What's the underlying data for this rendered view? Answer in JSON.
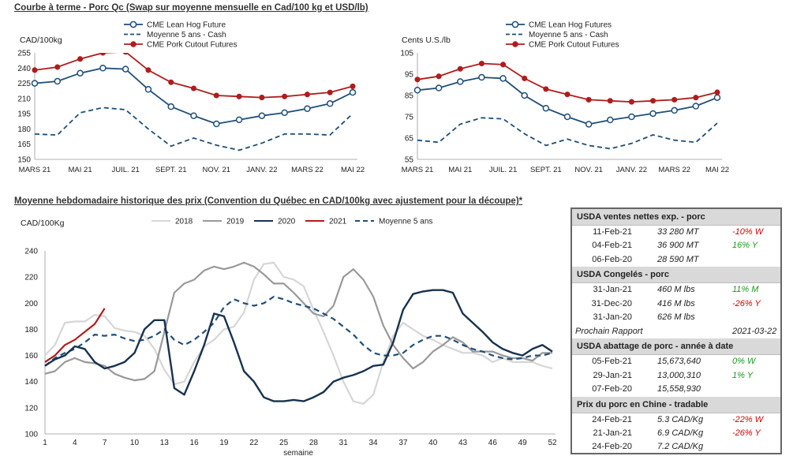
{
  "top_title": "Courbe à terme - Porc Qc (Swap sur moyenne mensuelle en Cad/100 kg et USD/lb)",
  "bottom_title": "Moyenne hebdomadaire historique des prix (Convention du Québec en CAD/100kg avec ajustement pour la découpe)*",
  "colors": {
    "lean": "#1f4e79",
    "cash": "#1f4e79",
    "cutout": "#b01c1c",
    "y2018": "#d6d6d6",
    "y2019": "#999999",
    "y2020": "#17324f",
    "y2021": "#b01c1c",
    "avg": "#1f4e79"
  },
  "chart_data": [
    {
      "type": "line",
      "ylabel": "CAD/100kg",
      "ylim": [
        150,
        255
      ],
      "yticks": [
        "150",
        "165",
        "180",
        "195",
        "210",
        "225",
        "240",
        "255"
      ],
      "categories": [
        "MARS 21",
        "AVR 21",
        "MAI 21",
        "JUIN 21",
        "JUIL. 21",
        "AOÛT 21",
        "SEPT. 21",
        "OCT. 21",
        "NOV. 21",
        "DÉC. 21",
        "JANV. 22",
        "FÉVR. 22",
        "MARS 22",
        "AVR. 22",
        "MAI 22"
      ],
      "xtick_labels": [
        "MARS 21",
        "MAI 21",
        "JUIL. 21",
        "SEPT. 21",
        "NOV. 21",
        "JANV. 22",
        "MARS 22",
        "MAI 22"
      ],
      "series": [
        {
          "name": "CME Lean Hog Future",
          "values": [
            225,
            227,
            235,
            240,
            239,
            219,
            202,
            193,
            185,
            189,
            193,
            196,
            200,
            205,
            216
          ]
        },
        {
          "name": "Moyenne 5 ans - Cash",
          "values": [
            175,
            174,
            196,
            201,
            199,
            180,
            163,
            171,
            164,
            159,
            166,
            175,
            175,
            174,
            195
          ]
        },
        {
          "name": "CME Pork Cutout Futures",
          "values": [
            238,
            241,
            249,
            255,
            256,
            238,
            226,
            220,
            213,
            212,
            211,
            212,
            214,
            216,
            222
          ]
        }
      ]
    },
    {
      "type": "line",
      "ylabel": "Cents U.S./lb",
      "ylim": [
        55,
        105
      ],
      "yticks": [
        "55",
        "65",
        "75",
        "85",
        "95",
        "105"
      ],
      "categories": [
        "MARS 21",
        "AVR 21",
        "MAI 21",
        "JUIN 21",
        "JUIL. 21",
        "AOÛT 21",
        "SEPT. 21",
        "OCT. 21",
        "NOV. 21",
        "DÉC. 21",
        "JANV. 22",
        "FÉVR. 22",
        "MARS 22",
        "AVR. 22",
        "MAI 22"
      ],
      "xtick_labels": [
        "MARS 21",
        "MAI 21",
        "JUIL. 21",
        "SEPT. 21",
        "NOV. 21",
        "JANV. 22",
        "MARS 22",
        "MAI 22"
      ],
      "series": [
        {
          "name": "CME Lean Hog Futures",
          "values": [
            87.5,
            88.5,
            91.5,
            93.5,
            93,
            85,
            79,
            75,
            71.5,
            73.5,
            75,
            76.5,
            78,
            80,
            84
          ]
        },
        {
          "name": "Moyenne 5 ans - Cash",
          "values": [
            64,
            63,
            71.5,
            74.5,
            74,
            67,
            61.5,
            64.5,
            61.5,
            60,
            62.5,
            66.5,
            64,
            63,
            72
          ]
        },
        {
          "name": "CME Pork Cutout Futures",
          "values": [
            92.5,
            94,
            97.5,
            100,
            99.5,
            93,
            88,
            85.5,
            83,
            82.5,
            82,
            82.5,
            83,
            84,
            86.5
          ]
        }
      ]
    },
    {
      "type": "line",
      "ylabel": "CAD/100Kg",
      "xlabel": "semaine",
      "ylim": [
        100,
        240
      ],
      "yticks": [
        "100",
        "120",
        "140",
        "160",
        "180",
        "200",
        "220",
        "240"
      ],
      "xticks": [
        1,
        4,
        7,
        10,
        13,
        16,
        19,
        22,
        25,
        28,
        31,
        34,
        37,
        40,
        43,
        46,
        49,
        52
      ],
      "series": [
        {
          "name": "2018",
          "values": [
            160,
            168,
            185,
            186,
            186,
            191,
            190,
            181,
            179,
            178,
            175,
            165,
            149,
            138,
            140,
            155,
            167,
            172,
            180,
            182,
            193,
            218,
            230,
            231,
            220,
            218,
            213,
            195,
            178,
            160,
            140,
            125,
            123,
            130,
            155,
            175,
            185,
            180,
            175,
            172,
            168,
            165,
            162,
            162,
            160,
            155,
            158,
            155,
            155,
            155,
            152,
            150
          ]
        },
        {
          "name": "2019",
          "values": [
            146,
            148,
            155,
            158,
            155,
            154,
            152,
            146,
            143,
            141,
            142,
            148,
            178,
            208,
            215,
            218,
            225,
            228,
            226,
            228,
            231,
            228,
            222,
            215,
            215,
            208,
            200,
            192,
            190,
            198,
            220,
            226,
            218,
            205,
            183,
            168,
            158,
            150,
            155,
            163,
            168,
            174,
            170,
            163,
            163,
            163,
            160,
            158,
            158,
            156,
            162,
            162
          ]
        },
        {
          "name": "2020",
          "values": [
            152,
            157,
            160,
            167,
            165,
            155,
            150,
            152,
            155,
            162,
            180,
            187,
            187,
            135,
            130,
            148,
            168,
            192,
            190,
            170,
            148,
            140,
            128,
            125,
            125,
            126,
            125,
            128,
            132,
            140,
            143,
            145,
            148,
            152,
            153,
            170,
            195,
            207,
            209,
            210,
            210,
            208,
            192,
            185,
            178,
            170,
            165,
            162,
            160,
            165,
            168,
            163
          ]
        },
        {
          "name": "2021",
          "values": [
            155,
            160,
            168,
            172,
            178,
            184,
            196
          ]
        },
        {
          "name": "Moyenne 5 ans",
          "values": [
            152,
            158,
            162,
            165,
            170,
            176,
            175,
            176,
            173,
            171,
            172,
            175,
            180,
            172,
            168,
            172,
            178,
            185,
            197,
            203,
            200,
            198,
            200,
            205,
            203,
            200,
            198,
            196,
            192,
            188,
            182,
            176,
            168,
            162,
            160,
            160,
            162,
            168,
            172,
            175,
            175,
            172,
            168,
            165,
            163,
            160,
            158,
            157,
            158,
            160,
            160,
            162
          ]
        }
      ]
    }
  ],
  "usda": {
    "sections": [
      {
        "title": "USDA ventes nettes exp. - porc",
        "rows": [
          {
            "date": "11-Feb-21",
            "value": "33 280  MT",
            "change": "-10% W",
            "dir": "neg"
          },
          {
            "date": "04-Feb-21",
            "value": "36 900  MT",
            "change": "16% Y",
            "dir": "pos"
          },
          {
            "date": "06-Feb-20",
            "value": "28 590  MT",
            "change": "",
            "dir": ""
          }
        ]
      },
      {
        "title": "USDA Congelés - porc",
        "rows": [
          {
            "date": "31-Jan-21",
            "value": "460 M lbs",
            "change": "11% M",
            "dir": "pos"
          },
          {
            "date": "31-Dec-20",
            "value": "416 M lbs",
            "change": "-26% Y",
            "dir": "neg"
          },
          {
            "date": "31-Jan-20",
            "value": "626 M lbs",
            "change": "",
            "dir": ""
          }
        ],
        "next_report_label": "Prochain Rapport",
        "next_report_date": "2021-03-22"
      },
      {
        "title": "USDA abattage de porc - année à date",
        "rows": [
          {
            "date": "05-Feb-21",
            "value": "15,673,640",
            "change": "0% W",
            "dir": "pos"
          },
          {
            "date": "29-Jan-21",
            "value": "13,000,310",
            "change": "1% Y",
            "dir": "pos"
          },
          {
            "date": "07-Feb-20",
            "value": "15,558,930",
            "change": "",
            "dir": ""
          }
        ]
      },
      {
        "title": "Prix du porc en Chine - tradable",
        "rows": [
          {
            "date": "24-Feb-21",
            "value": "5.3 CAD/Kg",
            "change": "-22% W",
            "dir": "neg"
          },
          {
            "date": "21-Jan-21",
            "value": "6.9 CAD/Kg",
            "change": "-26% Y",
            "dir": "neg"
          },
          {
            "date": "24-Feb-20",
            "value": "7.2 CAD/Kg",
            "change": "",
            "dir": ""
          }
        ]
      }
    ]
  }
}
